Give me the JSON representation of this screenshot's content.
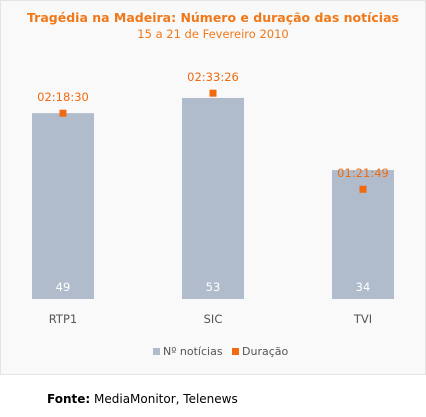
{
  "chart_data": {
    "type": "bar",
    "title": "Tragédia na Madeira: Número e duração das notícias",
    "subtitle": "15 a 21 de Fevereiro 2010",
    "categories": [
      "RTP1",
      "SIC",
      "TVI"
    ],
    "series": [
      {
        "name": "Nº notícias",
        "type": "bar",
        "values": [
          49,
          53,
          34
        ],
        "color": "#b0bccc",
        "axis": "left",
        "ylim": [
          0,
          58
        ]
      },
      {
        "name": "Duração",
        "type": "point",
        "values": [
          "02:18:30",
          "02:33:26",
          "01:21:49"
        ],
        "color": "#f06a0f",
        "axis": "right",
        "ylim": [
          "00:00:00",
          "02:44:00"
        ]
      }
    ],
    "grid": false,
    "legend_position": "bottom"
  },
  "source": {
    "label": "Fonte:",
    "text": "MediaMonitor, Telenews"
  }
}
